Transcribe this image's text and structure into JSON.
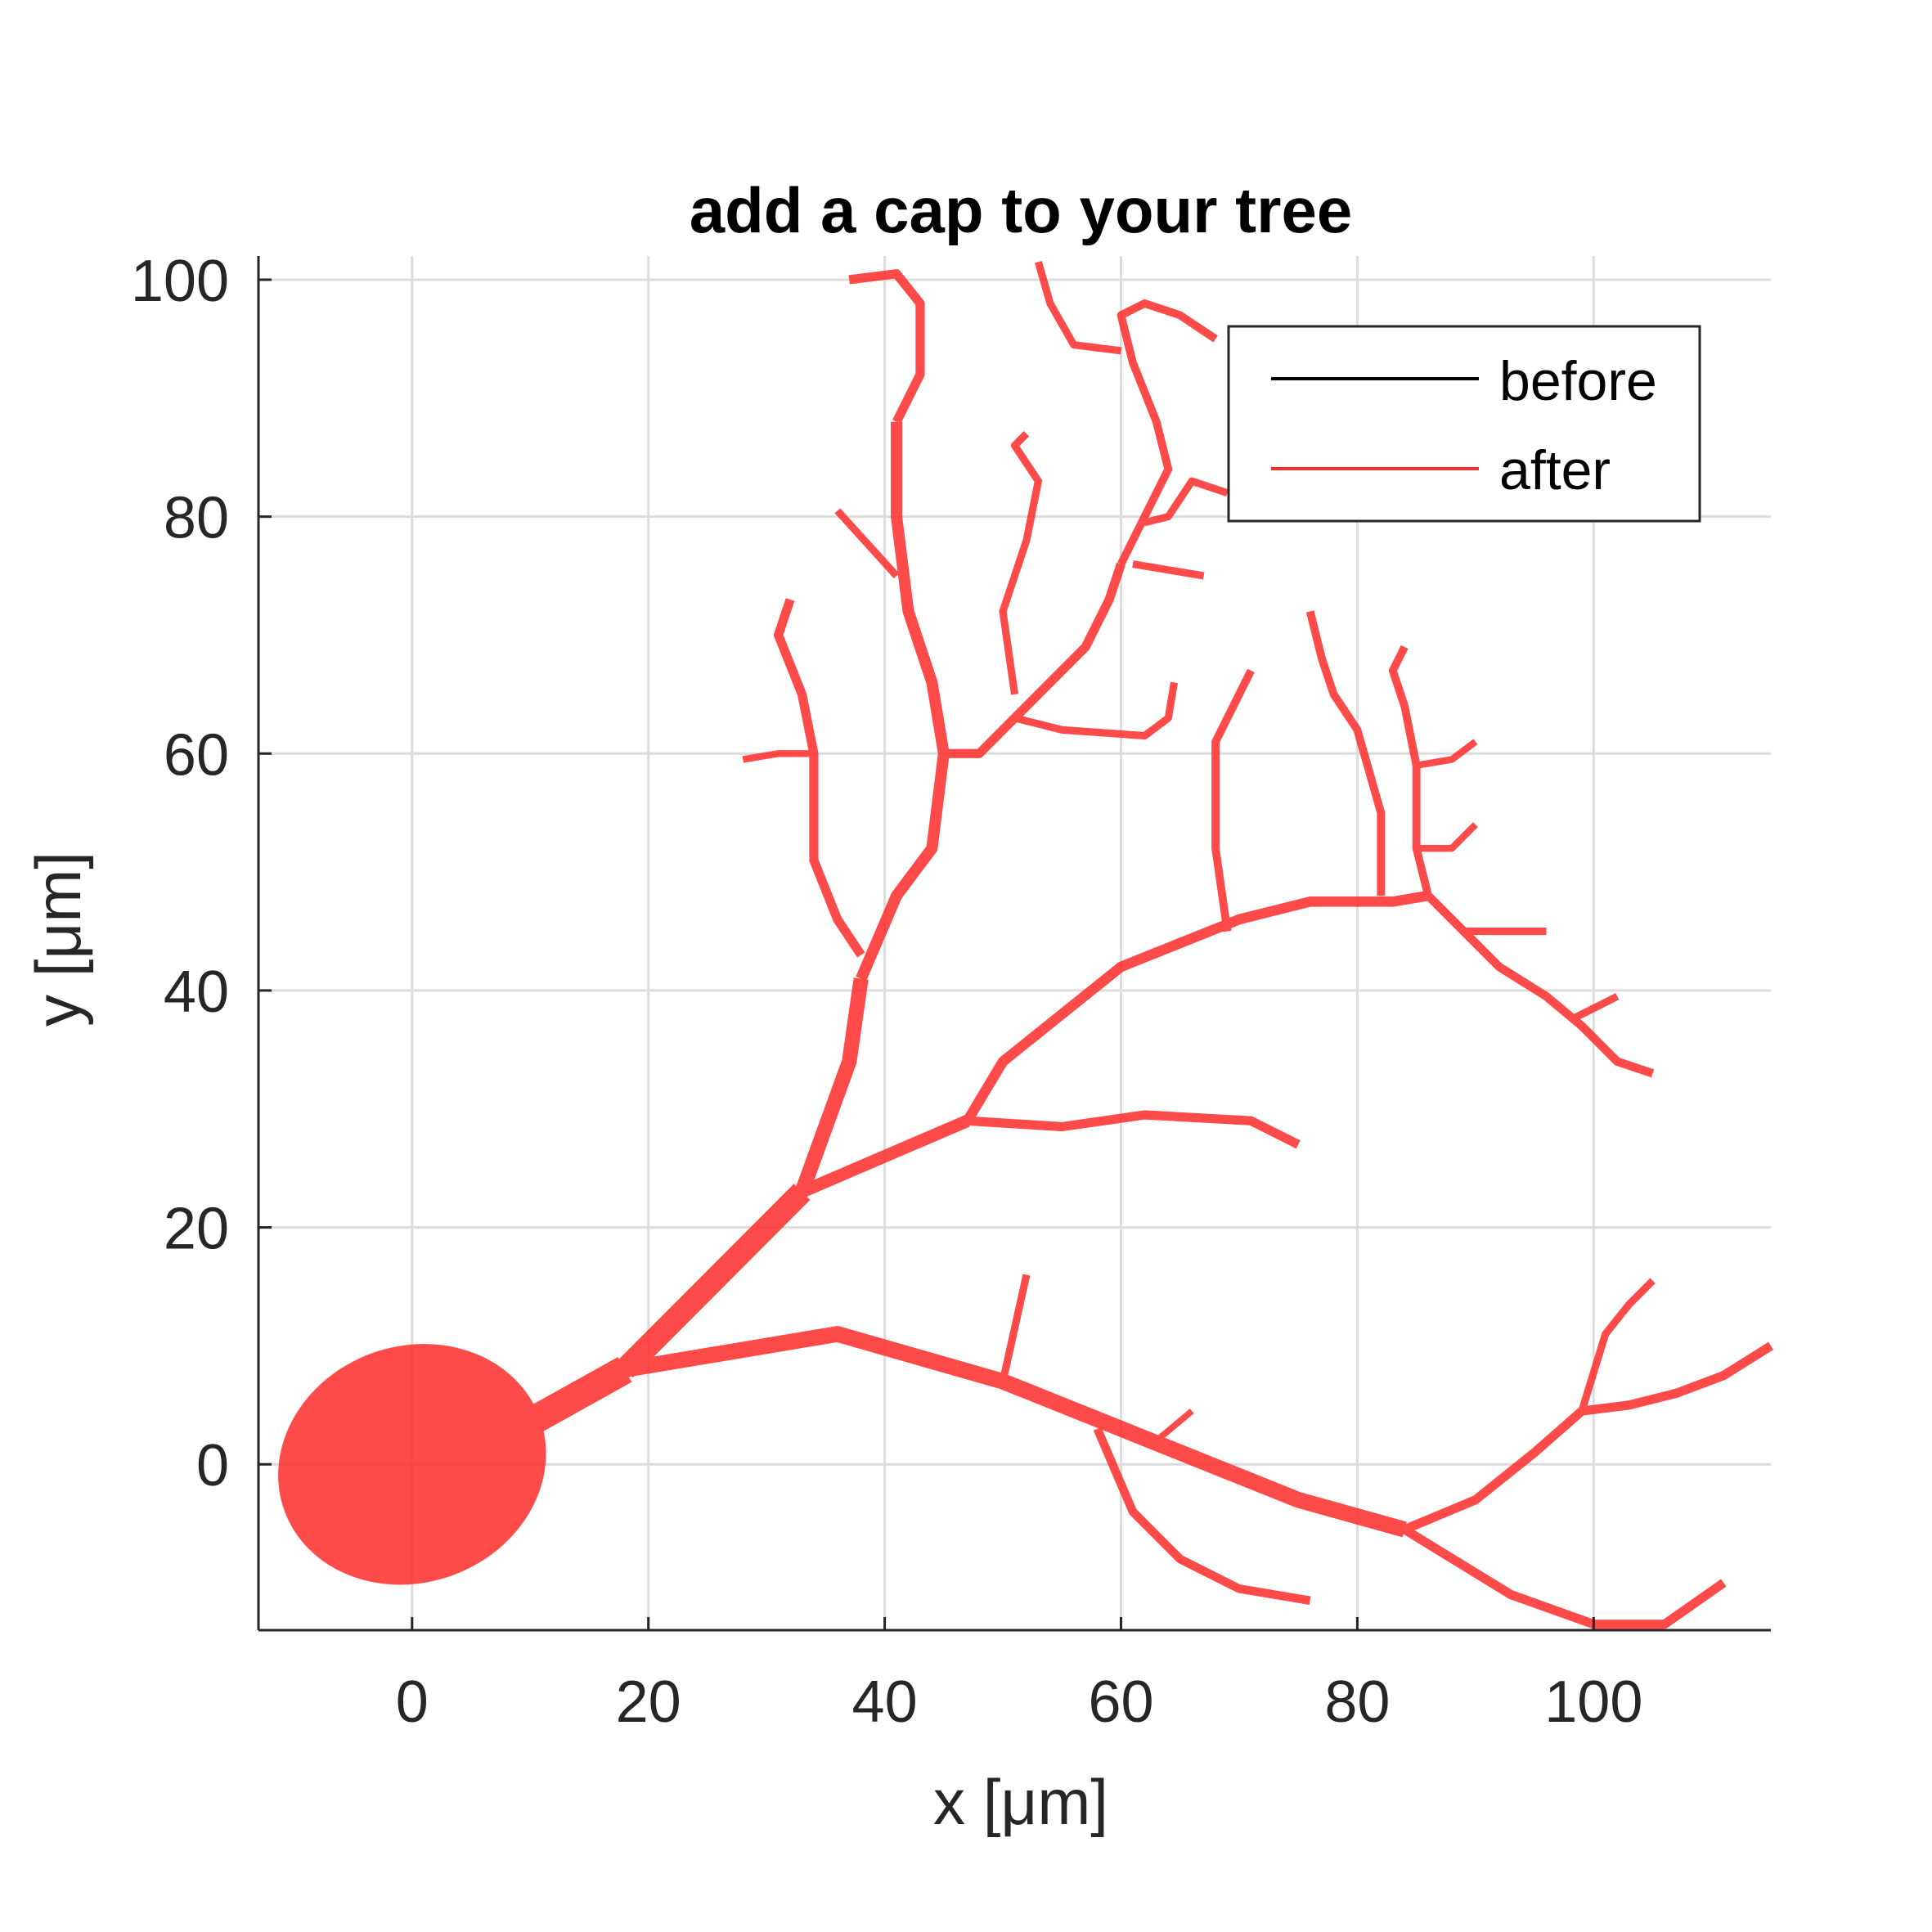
{
  "chart_data": {
    "type": "line",
    "title": "add a cap to your tree",
    "xlabel": "x [μm]",
    "ylabel": "y [μm]",
    "xlim": [
      -13,
      115
    ],
    "ylim": [
      -14,
      102
    ],
    "xticks": [
      0,
      20,
      40,
      60,
      80,
      100
    ],
    "yticks": [
      0,
      20,
      40,
      60,
      80,
      100
    ],
    "xtick_labels": [
      "0",
      "20",
      "40",
      "60",
      "80",
      "100"
    ],
    "ytick_labels": [
      "0",
      "20",
      "40",
      "60",
      "80",
      "100"
    ],
    "grid": true,
    "legend_position": "top-right",
    "series": [
      {
        "name": "before",
        "color": "#000000",
        "segments": []
      },
      {
        "name": "after",
        "color": "#ff2a2a",
        "soma": {
          "center": [
            0,
            0
          ],
          "radii": [
            11.5,
            10
          ]
        },
        "segments": [
          {
            "w": 5.0,
            "points": [
              [
                9,
                3
              ],
              [
                18,
                8
              ]
            ]
          },
          {
            "w": 4.0,
            "points": [
              [
                18,
                8
              ],
              [
                33,
                23
              ]
            ]
          },
          {
            "w": 2.8,
            "points": [
              [
                18,
                8
              ],
              [
                36,
                11
              ],
              [
                50,
                7
              ],
              [
                65,
                1
              ],
              [
                75,
                -3
              ],
              [
                84,
                -5.5
              ]
            ]
          },
          {
            "w": 1.6,
            "points": [
              [
                84,
                -5.5
              ],
              [
                90,
                -3
              ],
              [
                95,
                1
              ],
              [
                99,
                4.5
              ],
              [
                103,
                5
              ],
              [
                107,
                6
              ],
              [
                111,
                7.5
              ],
              [
                115,
                10
              ]
            ]
          },
          {
            "w": 1.3,
            "points": [
              [
                99,
                4.5
              ],
              [
                101,
                11
              ],
              [
                103,
                13.5
              ],
              [
                105,
                15.5
              ]
            ]
          },
          {
            "w": 1.6,
            "points": [
              [
                84,
                -5.5
              ],
              [
                93,
                -11
              ],
              [
                100,
                -13.5
              ],
              [
                106,
                -13.5
              ],
              [
                111,
                -10
              ]
            ]
          },
          {
            "w": 1.3,
            "points": [
              [
                50,
                7
              ],
              [
                52,
                16
              ]
            ]
          },
          {
            "w": 1.5,
            "points": [
              [
                58,
                3
              ],
              [
                61,
                -4
              ],
              [
                65,
                -8
              ],
              [
                70,
                -10.5
              ],
              [
                76,
                -11.5
              ]
            ]
          },
          {
            "w": 1.1,
            "points": [
              [
                63,
                2
              ],
              [
                66,
                4.5
              ]
            ]
          },
          {
            "w": 2.6,
            "points": [
              [
                33,
                23
              ],
              [
                37,
                34
              ],
              [
                38,
                41
              ]
            ]
          },
          {
            "w": 2.0,
            "points": [
              [
                38,
                41
              ],
              [
                41,
                48
              ],
              [
                44,
                52
              ],
              [
                45,
                60
              ],
              [
                44,
                66
              ],
              [
                42,
                72
              ],
              [
                41,
                80
              ],
              [
                41,
                88
              ]
            ]
          },
          {
            "w": 1.6,
            "points": [
              [
                41,
                88
              ],
              [
                43,
                92
              ],
              [
                43,
                98
              ],
              [
                41,
                100.5
              ],
              [
                37,
                100
              ]
            ]
          },
          {
            "w": 1.3,
            "points": [
              [
                41,
                75
              ],
              [
                36,
                80.5
              ]
            ]
          },
          {
            "w": 1.6,
            "points": [
              [
                45,
                60
              ],
              [
                48,
                60
              ],
              [
                52,
                64
              ],
              [
                57,
                69
              ],
              [
                59,
                73
              ],
              [
                60,
                76
              ]
            ]
          },
          {
            "w": 1.4,
            "points": [
              [
                60,
                76
              ],
              [
                62,
                80
              ],
              [
                64,
                84
              ],
              [
                63,
                88
              ],
              [
                61,
                93
              ],
              [
                60,
                97
              ],
              [
                62,
                98
              ],
              [
                65,
                97
              ],
              [
                68,
                95
              ]
            ]
          },
          {
            "w": 1.3,
            "points": [
              [
                62,
                79.5
              ],
              [
                64,
                80
              ],
              [
                66,
                83
              ],
              [
                69,
                82
              ]
            ]
          },
          {
            "w": 1.3,
            "points": [
              [
                61,
                76
              ],
              [
                67,
                75
              ]
            ]
          },
          {
            "w": 1.3,
            "points": [
              [
                60,
                94
              ],
              [
                56,
                94.5
              ],
              [
                54,
                98
              ],
              [
                53,
                101.5
              ]
            ]
          },
          {
            "w": 1.3,
            "points": [
              [
                51,
                65
              ],
              [
                50,
                72
              ],
              [
                52,
                78
              ],
              [
                53,
                83
              ],
              [
                51,
                86
              ],
              [
                52,
                87
              ]
            ]
          },
          {
            "w": 1.3,
            "points": [
              [
                51,
                63
              ],
              [
                55,
                62
              ],
              [
                62,
                61.5
              ],
              [
                64,
                63
              ],
              [
                64.5,
                66
              ]
            ]
          },
          {
            "w": 1.6,
            "points": [
              [
                38,
                43
              ],
              [
                36,
                46
              ],
              [
                34,
                51
              ],
              [
                34,
                60
              ],
              [
                33,
                65
              ],
              [
                31,
                70
              ],
              [
                32,
                73
              ]
            ]
          },
          {
            "w": 1.2,
            "points": [
              [
                34,
                60
              ],
              [
                31,
                60
              ],
              [
                28,
                59.5
              ]
            ]
          },
          {
            "w": 2.2,
            "points": [
              [
                33,
                23
              ],
              [
                47,
                29
              ]
            ]
          },
          {
            "w": 1.6,
            "points": [
              [
                47,
                29
              ],
              [
                55,
                28.5
              ],
              [
                62,
                29.5
              ],
              [
                71,
                29
              ],
              [
                75,
                27
              ]
            ]
          },
          {
            "w": 1.8,
            "points": [
              [
                47,
                29
              ],
              [
                50,
                34
              ],
              [
                55,
                38
              ],
              [
                60,
                42
              ],
              [
                65,
                44
              ],
              [
                70,
                46
              ],
              [
                76,
                47.5
              ],
              [
                83,
                47.5
              ],
              [
                86,
                48
              ]
            ]
          },
          {
            "w": 1.5,
            "points": [
              [
                86,
                48
              ],
              [
                89,
                45
              ],
              [
                92,
                42
              ],
              [
                96,
                39.5
              ],
              [
                99,
                37
              ],
              [
                102,
                34
              ],
              [
                105,
                33
              ]
            ]
          },
          {
            "w": 1.3,
            "points": [
              [
                89,
                45
              ],
              [
                96,
                45
              ]
            ]
          },
          {
            "w": 1.3,
            "points": [
              [
                98,
                37.5
              ],
              [
                102,
                39.5
              ]
            ]
          },
          {
            "w": 1.4,
            "points": [
              [
                86,
                48
              ],
              [
                85,
                52
              ],
              [
                85,
                59
              ],
              [
                84,
                64
              ],
              [
                83,
                67
              ],
              [
                84,
                69
              ]
            ]
          },
          {
            "w": 1.2,
            "points": [
              [
                85,
                52
              ],
              [
                88,
                52
              ],
              [
                90,
                54
              ]
            ]
          },
          {
            "w": 1.2,
            "points": [
              [
                85,
                59
              ],
              [
                88,
                59.5
              ],
              [
                90,
                61
              ]
            ]
          },
          {
            "w": 1.4,
            "points": [
              [
                82,
                48
              ],
              [
                82,
                55
              ],
              [
                80,
                62
              ],
              [
                78,
                65
              ],
              [
                77,
                68
              ],
              [
                76,
                72
              ]
            ]
          },
          {
            "w": 1.4,
            "points": [
              [
                69,
                45
              ],
              [
                68,
                52
              ],
              [
                68,
                61
              ],
              [
                70,
                65
              ],
              [
                71,
                67
              ]
            ]
          }
        ]
      }
    ]
  }
}
